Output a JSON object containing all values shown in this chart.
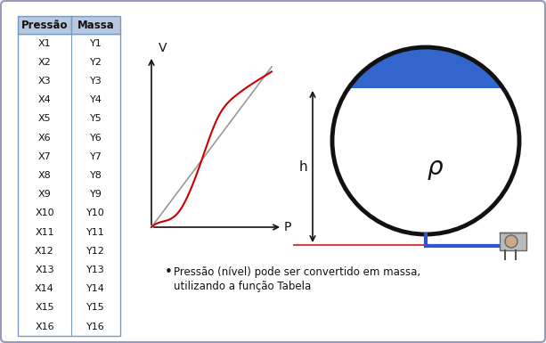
{
  "background_color": "#e8eef4",
  "border_color": "#9999bb",
  "table_headers": [
    "Pressão",
    "Massa"
  ],
  "table_rows": [
    [
      "X1",
      "Y1"
    ],
    [
      "X2",
      "Y2"
    ],
    [
      "X3",
      "Y3"
    ],
    [
      "X4",
      "Y4"
    ],
    [
      "X5",
      "Y5"
    ],
    [
      "X6",
      "Y6"
    ],
    [
      "X7",
      "Y7"
    ],
    [
      "X8",
      "Y8"
    ],
    [
      "X9",
      "Y9"
    ],
    [
      "X10",
      "Y10"
    ],
    [
      "X11",
      "Y11"
    ],
    [
      "X12",
      "Y12"
    ],
    [
      "X13",
      "Y13"
    ],
    [
      "X14",
      "Y14"
    ],
    [
      "X15",
      "Y15"
    ],
    [
      "X16",
      "Y16"
    ]
  ],
  "table_header_bg": "#b8c8e0",
  "table_border_color": "#7799bb",
  "line_gray": "#999999",
  "line_red": "#cc0000",
  "tank_fill_color": "#3366cc",
  "tank_border_color": "#111111",
  "tank_pipe_color": "#3355cc",
  "ground_line_color": "#cc4444",
  "arrow_color": "#111111",
  "text_color": "#111111",
  "bullet_text_line1": "Pressão (nível) pode ser convertido em massa,",
  "bullet_text_line2": "utilizando a função Tabela",
  "label_V": "V",
  "label_P": "P",
  "label_h": "h",
  "label_rho": "ρ",
  "fig_width": 6.13,
  "fig_height": 3.85,
  "dpi": 100
}
